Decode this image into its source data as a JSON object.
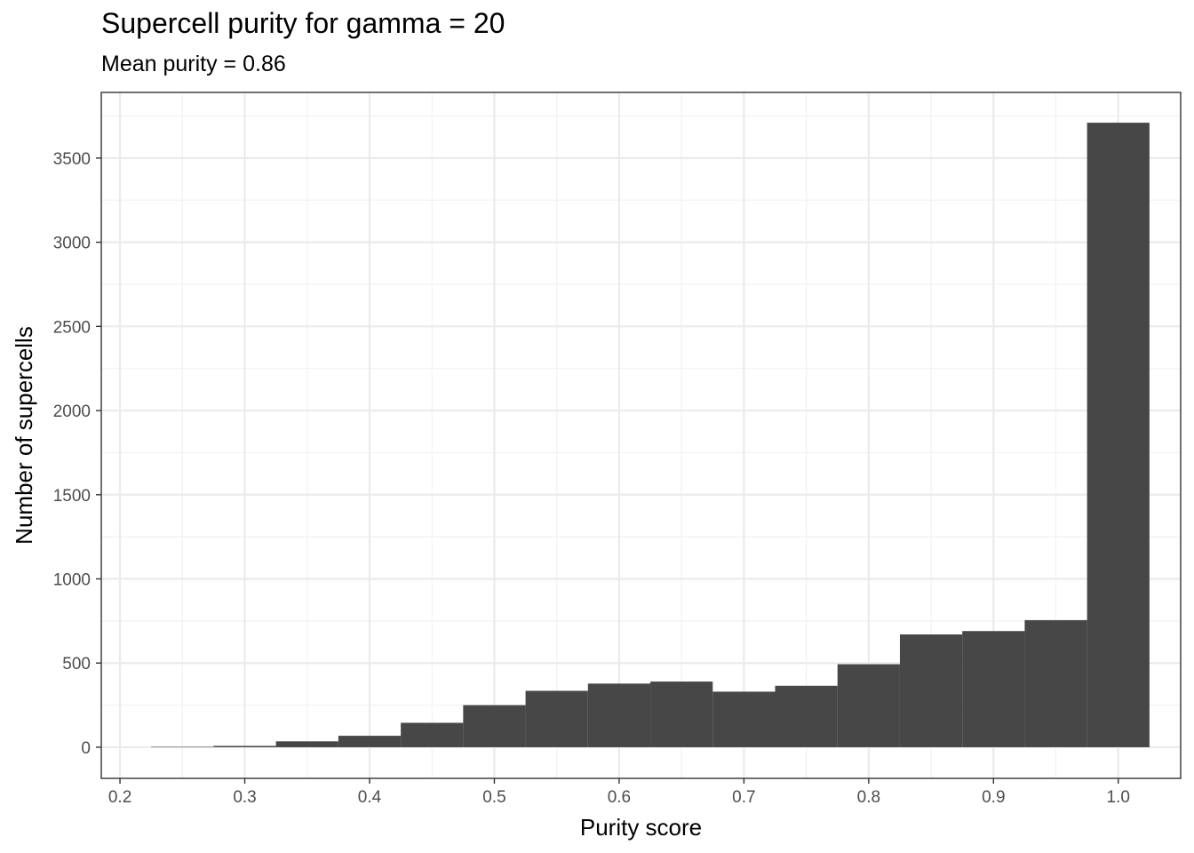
{
  "chart_data": {
    "type": "bar",
    "title": "Supercell purity for gamma = 20",
    "subtitle": "Mean purity = 0.86",
    "xlabel": "Purity score",
    "ylabel": "Number of supercells",
    "xlim": [
      0.185,
      1.05
    ],
    "ylim": [
      -185,
      3890
    ],
    "x_ticks": [
      0.2,
      0.3,
      0.4,
      0.5,
      0.6,
      0.7,
      0.8,
      0.9,
      1.0
    ],
    "x_tick_labels": [
      "0.2",
      "0.3",
      "0.4",
      "0.5",
      "0.6",
      "0.7",
      "0.8",
      "0.9",
      "1.0"
    ],
    "y_ticks": [
      0,
      500,
      1000,
      1500,
      2000,
      2500,
      3000,
      3500
    ],
    "y_tick_labels": [
      "0",
      "500",
      "1000",
      "1500",
      "2000",
      "2500",
      "3000",
      "3500"
    ],
    "bin_width": 0.05,
    "bins": [
      {
        "x": 0.25,
        "value": 2
      },
      {
        "x": 0.3,
        "value": 8
      },
      {
        "x": 0.35,
        "value": 35
      },
      {
        "x": 0.4,
        "value": 68
      },
      {
        "x": 0.45,
        "value": 145
      },
      {
        "x": 0.5,
        "value": 250
      },
      {
        "x": 0.55,
        "value": 335
      },
      {
        "x": 0.6,
        "value": 378
      },
      {
        "x": 0.65,
        "value": 390
      },
      {
        "x": 0.7,
        "value": 330
      },
      {
        "x": 0.75,
        "value": 365
      },
      {
        "x": 0.8,
        "value": 493
      },
      {
        "x": 0.85,
        "value": 670
      },
      {
        "x": 0.9,
        "value": 690
      },
      {
        "x": 0.95,
        "value": 755
      },
      {
        "x": 1.0,
        "value": 3710
      }
    ],
    "grid": true,
    "colors": {
      "bar": "#474747",
      "grid_major": "#ebebeb",
      "grid_minor": "#f2f2f2",
      "panel_border": "#333333"
    }
  }
}
